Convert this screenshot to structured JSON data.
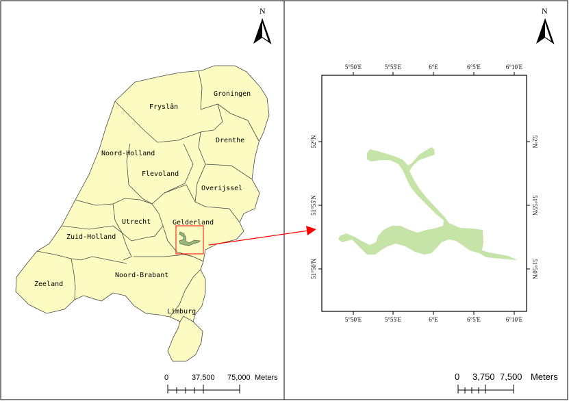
{
  "colors": {
    "land": "#fcfbc2",
    "study_area": "#c6e4a8",
    "highlight": "#ff0000",
    "border": "#000000"
  },
  "left_map": {
    "north_label": "N",
    "provinces": [
      "Groningen",
      "Fryslân",
      "Drenthe",
      "Noord-Holland",
      "Flevoland",
      "Overijssel",
      "Gelderland",
      "Utrecht",
      "Zuid-Holland",
      "Zeeland",
      "Noord-Brabant",
      "Limburg"
    ],
    "scale": {
      "ticks": [
        "0",
        "37,500",
        "75,000"
      ],
      "unit": "Meters"
    }
  },
  "right_map": {
    "north_label": "N",
    "lon_labels": [
      "5°50'E",
      "5°55'E",
      "6°E",
      "6°5'E",
      "6°10'E"
    ],
    "lat_labels": [
      "52°N",
      "51°55'N",
      "51°50'N"
    ],
    "scale": {
      "ticks": [
        "0",
        "3,750",
        "7,500"
      ],
      "unit": "Meters"
    }
  },
  "icons": [
    "north-arrow-icon",
    "arrow-pointer-icon"
  ]
}
